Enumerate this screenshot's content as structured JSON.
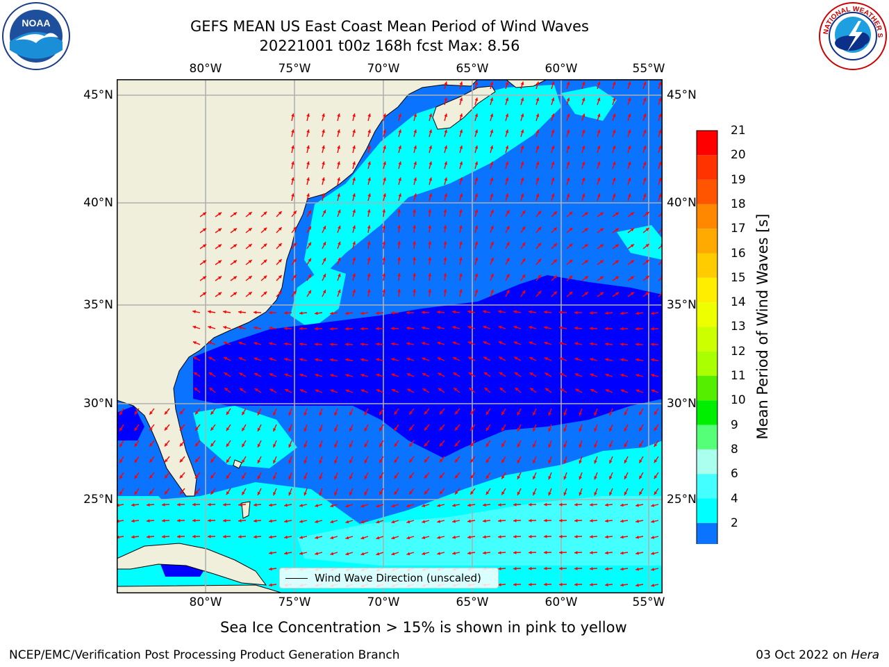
{
  "header": {
    "title_line1": "GEFS MEAN US East Coast Mean Period of Wind Waves",
    "title_line2": "20221001 t00z 168h fcst   Max: 8.56"
  },
  "map": {
    "lon_labels": [
      "80°W",
      "75°W",
      "70°W",
      "65°W",
      "60°W",
      "55°W"
    ],
    "lat_labels": [
      "45°N",
      "40°N",
      "35°N",
      "30°N",
      "25°N"
    ],
    "legend_label": "Wind Wave Direction (unscaled)",
    "colors": {
      "land": "#efefdc",
      "cls_2_4": "#0a73ff",
      "cls_4_6": "#00ffff",
      "cls_6_8": "#44ffff",
      "cls_below_2": "#0000ff",
      "arrow": "#ff0000",
      "grid": "#b0b0b0"
    }
  },
  "colorbar": {
    "label": "Mean Period of Wind Waves [s]",
    "ticks": [
      "21",
      "20",
      "19",
      "18",
      "17",
      "16",
      "15",
      "14",
      "13",
      "12",
      "11",
      "10",
      "9",
      "8",
      "6",
      "4",
      "2"
    ],
    "segment_colors": [
      "#ff0000",
      "#ff3300",
      "#ff5500",
      "#ff8800",
      "#ffaa00",
      "#ffcc00",
      "#ffee00",
      "#eeff00",
      "#ccff00",
      "#aaff00",
      "#55ee00",
      "#00ee00",
      "#55ff77",
      "#aaffee",
      "#44ffff",
      "#00ffff",
      "#0a73ff"
    ],
    "under_color": "#0000ff"
  },
  "footer": {
    "subtitle": "Sea Ice Concentration > 15% is shown in pink to yellow",
    "left": "NCEP/EMC/Verification Post Processing Product Generation Branch",
    "right_date": "03 Oct 2022 on ",
    "right_machine": "Hera"
  },
  "logos": {
    "noaa_text": "NOAA",
    "nws_text": "NATIONAL WEATHER SERVICE"
  }
}
